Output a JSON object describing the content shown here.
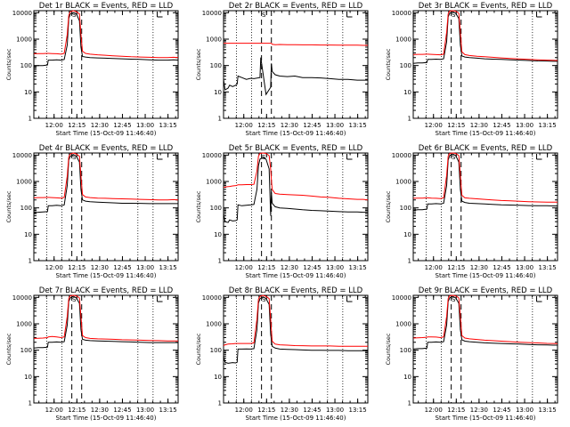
{
  "figure": {
    "colors": {
      "events": "#000000",
      "lld": "#ff0000",
      "background": "#ffffff"
    },
    "common": {
      "xlabel": "Start Time (15-Oct-09 11:46:40)",
      "ylabel": "Counts/sec",
      "y_scale": "log",
      "ylim": [
        1,
        12000
      ],
      "y_ticks": [
        1,
        10,
        100,
        1000,
        10000
      ],
      "y_tick_labels": [
        "1",
        "10",
        "100",
        "1000",
        "10000"
      ],
      "xlim_minutes_after_start": [
        0,
        95
      ],
      "x_ticks_minutes_after_start": [
        13.33,
        28.33,
        43.33,
        58.33,
        73.33,
        88.33
      ],
      "x_tick_labels": [
        "12:00",
        "12:15",
        "12:30",
        "12:45",
        "13:00",
        "13:15"
      ],
      "dotted_vertical_lines_minutes": [
        8.5,
        18.5,
        68.5,
        78.5
      ],
      "dashed_vertical_lines_minutes": [
        25.0,
        31.5
      ],
      "markers": [
        "S",
        "E"
      ]
    }
  },
  "chart_data": [
    {
      "type": "line",
      "title": "Det 1r BLACK = Events, RED = LLD",
      "xlabel": "Start Time (15-Oct-09 11:46:40)",
      "ylabel": "Counts/sec",
      "ylim": [
        1,
        12000
      ],
      "y_scale": "log",
      "x": [
        0,
        3,
        6,
        9,
        9.5,
        12,
        15,
        18,
        20,
        22,
        23,
        24,
        26,
        28,
        30,
        31,
        32,
        34,
        37,
        42,
        47,
        52,
        58,
        64,
        70,
        76,
        82,
        88,
        92,
        95
      ],
      "series": [
        {
          "name": "Events",
          "values": [
            95,
            100,
            100,
            105,
            160,
            160,
            165,
            160,
            170,
            600,
            6000,
            9000,
            10000,
            9000,
            5000,
            500,
            220,
            210,
            200,
            195,
            190,
            185,
            180,
            175,
            170,
            165,
            160,
            160,
            165,
            160
          ]
        },
        {
          "name": "LLD",
          "values": [
            280,
            285,
            285,
            290,
            290,
            285,
            280,
            270,
            290,
            1500,
            8000,
            11000,
            12000,
            11000,
            9000,
            1500,
            350,
            290,
            270,
            255,
            245,
            235,
            225,
            215,
            210,
            205,
            200,
            200,
            205,
            200
          ]
        }
      ]
    },
    {
      "type": "line",
      "title": "Det 2r BLACK = Events, RED = LLD",
      "xlabel": "Start Time (15-Oct-09 11:46:40)",
      "ylabel": "Counts/sec",
      "ylim": [
        1,
        12000
      ],
      "y_scale": "log",
      "x": [
        0,
        1,
        3,
        4,
        6,
        8,
        9,
        9.5,
        12,
        15,
        18,
        20,
        24,
        24.5,
        28,
        31,
        31.5,
        32,
        34,
        37,
        42,
        47,
        52,
        58,
        64,
        70,
        76,
        82,
        88,
        92,
        95
      ],
      "series": [
        {
          "name": "Events",
          "values": [
            30,
            12,
            14,
            18,
            16,
            18,
            20,
            40,
            35,
            30,
            33,
            32,
            35,
            200,
            8,
            15,
            120,
            60,
            45,
            40,
            38,
            40,
            35,
            35,
            34,
            32,
            30,
            30,
            28,
            28,
            28
          ]
        },
        {
          "name": "LLD",
          "values": [
            700,
            700,
            700,
            700,
            700,
            700,
            700,
            700,
            700,
            700,
            700,
            700,
            700,
            700,
            700,
            700,
            700,
            640,
            620,
            630,
            620,
            620,
            610,
            610,
            600,
            600,
            590,
            590,
            590,
            580,
            580
          ]
        }
      ]
    },
    {
      "type": "line",
      "title": "Det 3r BLACK = Events, RED = LLD",
      "xlabel": "Start Time (15-Oct-09 11:46:40)",
      "ylabel": "Counts/sec",
      "ylim": [
        1,
        12000
      ],
      "y_scale": "log",
      "x": [
        0,
        3,
        6,
        9,
        9.5,
        12,
        15,
        18,
        20,
        22,
        23,
        24,
        26,
        28,
        30,
        31,
        32,
        34,
        37,
        42,
        47,
        52,
        58,
        64,
        70,
        76,
        82,
        88,
        92,
        95
      ],
      "series": [
        {
          "name": "Events",
          "values": [
            120,
            125,
            125,
            130,
            170,
            170,
            175,
            170,
            180,
            800,
            7000,
            9500,
            11000,
            9500,
            6000,
            600,
            230,
            210,
            200,
            190,
            180,
            175,
            170,
            165,
            160,
            155,
            150,
            148,
            145,
            145
          ]
        },
        {
          "name": "LLD",
          "values": [
            260,
            265,
            265,
            270,
            270,
            265,
            260,
            255,
            270,
            1800,
            9000,
            11500,
            12000,
            11500,
            9500,
            1800,
            330,
            260,
            240,
            225,
            215,
            205,
            195,
            185,
            178,
            170,
            165,
            160,
            158,
            155
          ]
        }
      ]
    },
    {
      "type": "line",
      "title": "Det 4r BLACK = Events, RED = LLD",
      "xlabel": "Start Time (15-Oct-09 11:46:40)",
      "ylabel": "Counts/sec",
      "ylim": [
        1,
        12000
      ],
      "y_scale": "log",
      "x": [
        0,
        3,
        6,
        9,
        9.5,
        12,
        15,
        18,
        20,
        22,
        23,
        24,
        26,
        28,
        30,
        31,
        32,
        34,
        37,
        42,
        47,
        52,
        58,
        64,
        70,
        76,
        82,
        88,
        92,
        95
      ],
      "series": [
        {
          "name": "Events",
          "values": [
            65,
            68,
            70,
            72,
            120,
            120,
            125,
            120,
            130,
            700,
            6500,
            9000,
            10500,
            9000,
            5500,
            500,
            200,
            180,
            170,
            165,
            160,
            155,
            150,
            150,
            148,
            145,
            145,
            145,
            145,
            145
          ]
        },
        {
          "name": "LLD",
          "values": [
            240,
            245,
            245,
            250,
            250,
            245,
            240,
            235,
            250,
            1600,
            8500,
            11000,
            12000,
            11000,
            9000,
            1600,
            320,
            260,
            245,
            235,
            230,
            225,
            220,
            215,
            210,
            205,
            200,
            200,
            205,
            200
          ]
        }
      ]
    },
    {
      "type": "line",
      "title": "Det 5r BLACK = Events, RED = LLD",
      "xlabel": "Start Time (15-Oct-09 11:46:40)",
      "ylabel": "Counts/sec",
      "ylim": [
        1,
        12000
      ],
      "y_scale": "log",
      "x": [
        0,
        1,
        3,
        4,
        6,
        8,
        9,
        9.5,
        12,
        15,
        18,
        20,
        22,
        23,
        24,
        26,
        28,
        30,
        31,
        31.5,
        32,
        34,
        37,
        42,
        47,
        52,
        58,
        64,
        70,
        76,
        82,
        88,
        92,
        95
      ],
      "series": [
        {
          "name": "Events",
          "values": [
            60,
            30,
            28,
            35,
            32,
            33,
            35,
            130,
            120,
            125,
            130,
            135,
            500,
            4000,
            7000,
            8000,
            7000,
            3000,
            50,
            400,
            150,
            110,
            100,
            95,
            90,
            85,
            80,
            78,
            75,
            72,
            70,
            70,
            68,
            68
          ]
        },
        {
          "name": "LLD",
          "values": [
            600,
            620,
            640,
            650,
            680,
            700,
            720,
            750,
            750,
            760,
            760,
            780,
            2500,
            9000,
            11500,
            12000,
            11500,
            9500,
            3000,
            1200,
            500,
            350,
            330,
            320,
            310,
            300,
            280,
            260,
            250,
            230,
            220,
            210,
            210,
            200
          ]
        }
      ]
    },
    {
      "type": "line",
      "title": "Det 6r BLACK = Events, RED = LLD",
      "xlabel": "Start Time (15-Oct-09 11:46:40)",
      "ylabel": "Counts/sec",
      "ylim": [
        1,
        12000
      ],
      "y_scale": "log",
      "x": [
        0,
        3,
        6,
        9,
        9.5,
        12,
        15,
        18,
        20,
        22,
        23,
        24,
        26,
        28,
        30,
        31,
        32,
        34,
        37,
        42,
        47,
        52,
        58,
        64,
        70,
        76,
        82,
        88,
        92,
        95
      ],
      "series": [
        {
          "name": "Events",
          "values": [
            80,
            85,
            85,
            90,
            140,
            140,
            145,
            140,
            150,
            700,
            6500,
            9500,
            11000,
            9500,
            5500,
            500,
            180,
            160,
            150,
            145,
            140,
            135,
            130,
            128,
            125,
            122,
            120,
            120,
            118,
            118
          ]
        },
        {
          "name": "LLD",
          "values": [
            230,
            235,
            235,
            240,
            240,
            235,
            230,
            225,
            240,
            1700,
            9000,
            11500,
            12000,
            11500,
            9500,
            1700,
            300,
            240,
            230,
            220,
            210,
            200,
            190,
            185,
            178,
            172,
            168,
            165,
            165,
            165
          ]
        }
      ]
    },
    {
      "type": "line",
      "title": "Det 7r BLACK = Events, RED = LLD",
      "xlabel": "Start Time (15-Oct-09 11:46:40)",
      "ylabel": "Counts/sec",
      "ylim": [
        1,
        12000
      ],
      "y_scale": "log",
      "x": [
        0,
        3,
        6,
        9,
        9.5,
        12,
        15,
        18,
        20,
        22,
        23,
        24,
        26,
        28,
        30,
        31,
        32,
        34,
        37,
        42,
        47,
        52,
        58,
        64,
        70,
        76,
        82,
        88,
        92,
        95
      ],
      "series": [
        {
          "name": "Events",
          "values": [
            120,
            125,
            125,
            130,
            200,
            200,
            205,
            200,
            210,
            900,
            7000,
            9500,
            11000,
            9500,
            6000,
            600,
            260,
            240,
            230,
            225,
            220,
            215,
            210,
            205,
            200,
            195,
            195,
            195,
            195,
            195
          ]
        },
        {
          "name": "LLD",
          "values": [
            280,
            285,
            290,
            300,
            320,
            330,
            320,
            300,
            320,
            1900,
            9000,
            11500,
            12000,
            11500,
            9500,
            1900,
            360,
            300,
            280,
            270,
            265,
            260,
            250,
            245,
            240,
            235,
            230,
            225,
            225,
            225
          ]
        }
      ]
    },
    {
      "type": "line",
      "title": "Det 8r BLACK = Events, RED = LLD",
      "xlabel": "Start Time (15-Oct-09 11:46:40)",
      "ylabel": "Counts/sec",
      "ylim": [
        1,
        12000
      ],
      "y_scale": "log",
      "x": [
        0,
        1,
        3,
        6,
        8,
        9,
        9.5,
        12,
        15,
        18,
        20,
        22,
        23,
        24,
        26,
        28,
        30,
        31,
        32,
        34,
        37,
        42,
        47,
        52,
        58,
        64,
        70,
        76,
        82,
        88,
        92,
        95
      ],
      "series": [
        {
          "name": "Events",
          "values": [
            60,
            35,
            32,
            34,
            33,
            35,
            110,
            110,
            112,
            110,
            115,
            600,
            6000,
            9000,
            10500,
            9000,
            5500,
            400,
            140,
            120,
            110,
            108,
            105,
            102,
            100,
            100,
            98,
            98,
            96,
            96,
            95,
            95
          ]
        },
        {
          "name": "LLD",
          "values": [
            150,
            160,
            170,
            175,
            180,
            180,
            180,
            180,
            180,
            180,
            190,
            1500,
            8500,
            11000,
            12000,
            11000,
            9000,
            1500,
            220,
            170,
            160,
            155,
            150,
            148,
            145,
            145,
            145,
            142,
            140,
            140,
            140,
            140
          ]
        }
      ]
    },
    {
      "type": "line",
      "title": "Det 9r BLACK = Events, RED = LLD",
      "xlabel": "Start Time (15-Oct-09 11:46:40)",
      "ylabel": "Counts/sec",
      "ylim": [
        1,
        12000
      ],
      "y_scale": "log",
      "x": [
        0,
        3,
        6,
        9,
        9.5,
        12,
        15,
        18,
        20,
        22,
        23,
        24,
        26,
        28,
        30,
        31,
        32,
        34,
        37,
        42,
        47,
        52,
        58,
        64,
        70,
        76,
        82,
        88,
        92,
        95
      ],
      "series": [
        {
          "name": "Events",
          "values": [
            110,
            115,
            115,
            120,
            200,
            200,
            205,
            200,
            210,
            900,
            7000,
            9500,
            11000,
            9500,
            6000,
            600,
            250,
            220,
            210,
            200,
            190,
            185,
            180,
            175,
            170,
            165,
            160,
            158,
            155,
            155
          ]
        },
        {
          "name": "LLD",
          "values": [
            290,
            295,
            300,
            310,
            320,
            320,
            315,
            300,
            320,
            1900,
            9000,
            11500,
            12000,
            11500,
            9500,
            1900,
            360,
            290,
            270,
            255,
            240,
            230,
            220,
            210,
            200,
            195,
            188,
            182,
            180,
            178
          ]
        }
      ]
    }
  ]
}
